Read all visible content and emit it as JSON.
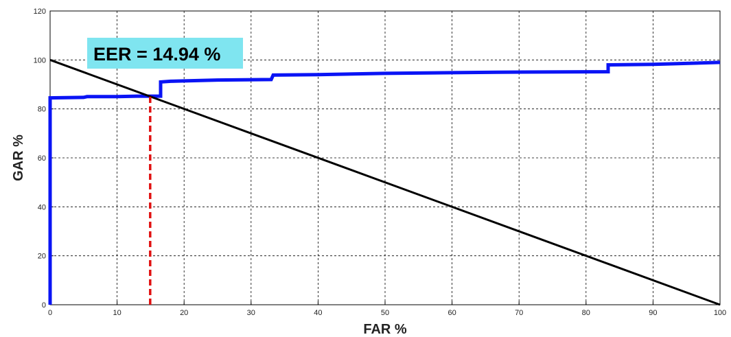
{
  "chart_data": {
    "type": "line",
    "xlabel": "FAR %",
    "ylabel": "GAR %",
    "xlim": [
      0,
      100
    ],
    "ylim": [
      0,
      120
    ],
    "xticks": [
      0,
      10,
      20,
      30,
      40,
      50,
      60,
      70,
      80,
      90,
      100
    ],
    "yticks": [
      0,
      20,
      40,
      60,
      80,
      100,
      120
    ],
    "grid": true,
    "annotation": {
      "text": "EER = 14.94 %",
      "background": "#7fe5f0",
      "eer_x": 14.94,
      "eer_y": 85
    },
    "series": [
      {
        "color": "#0a14f5",
        "points": [
          [
            0,
            0
          ],
          [
            0,
            84.5
          ],
          [
            5,
            84.7
          ],
          [
            5.5,
            85
          ],
          [
            10,
            85
          ],
          [
            13,
            85.2
          ],
          [
            16.5,
            85.2
          ],
          [
            16.5,
            91
          ],
          [
            18,
            91.3
          ],
          [
            25,
            91.8
          ],
          [
            33,
            92
          ],
          [
            33.3,
            93.8
          ],
          [
            40,
            94
          ],
          [
            50,
            94.5
          ],
          [
            60,
            94.8
          ],
          [
            66.7,
            95
          ],
          [
            83.3,
            95.2
          ],
          [
            83.3,
            98
          ],
          [
            90,
            98.2
          ],
          [
            100,
            99
          ]
        ]
      },
      {
        "color": "#000000",
        "points": [
          [
            0,
            100
          ],
          [
            100,
            0
          ]
        ]
      },
      {
        "color": "#e01010",
        "style": "dashed",
        "points": [
          [
            14.94,
            0
          ],
          [
            14.94,
            85
          ]
        ]
      }
    ]
  }
}
